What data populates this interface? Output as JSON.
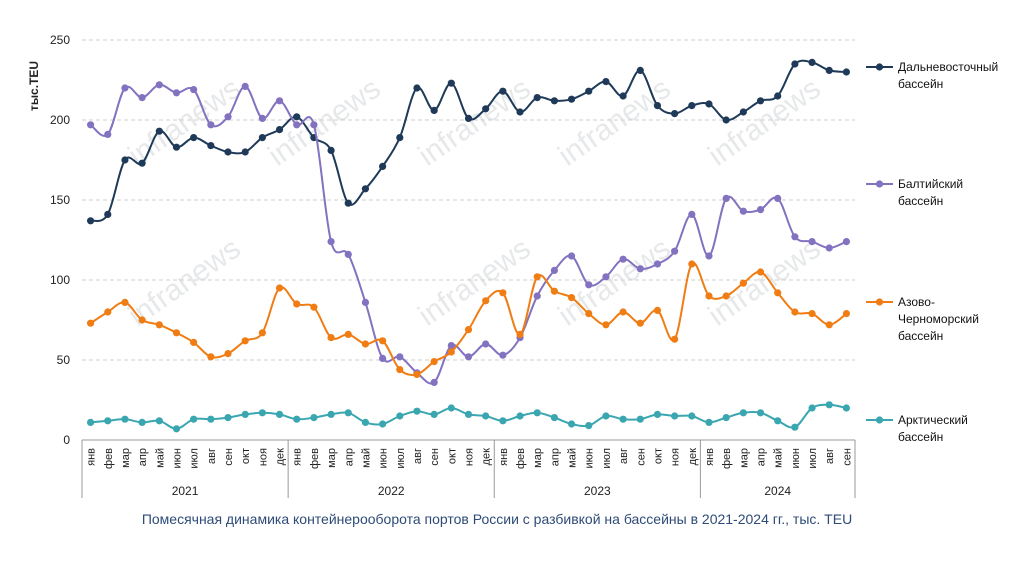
{
  "watermark": "infranews",
  "chart_data": {
    "type": "line",
    "title": "",
    "caption": "Помесячная динамика контейнерооборота портов России с разбивкой на бассейны в 2021-2024 гг., тыс. TEU",
    "ylabel": "тыс.TEU",
    "xlabel": "",
    "ylim": [
      0,
      250
    ],
    "yticks": [
      0,
      50,
      100,
      150,
      200,
      250
    ],
    "grid": true,
    "legend_position": "right",
    "years": [
      "2021",
      "2022",
      "2023",
      "2024"
    ],
    "months": [
      "янв",
      "фев",
      "мар",
      "апр",
      "май",
      "июн",
      "июл",
      "авг",
      "сен",
      "окт",
      "ноя",
      "дек",
      "янв",
      "фев",
      "мар",
      "апр",
      "май",
      "июн",
      "июл",
      "авг",
      "сен",
      "окт",
      "ноя",
      "дек",
      "янв",
      "фев",
      "мар",
      "апр",
      "май",
      "июн",
      "июл",
      "авг",
      "сен",
      "окт",
      "ноя",
      "дек",
      "янв",
      "фев",
      "мар",
      "апр",
      "май",
      "июн",
      "июл",
      "авг",
      "сен"
    ],
    "series": [
      {
        "name": "Дальневосточный бассейн",
        "label_lines": [
          "Дальневосточный",
          "бассейн"
        ],
        "color": "#1f3a58",
        "values": [
          137,
          141,
          175,
          173,
          193,
          183,
          189,
          184,
          180,
          180,
          189,
          194,
          202,
          189,
          181,
          148,
          157,
          171,
          189,
          220,
          206,
          223,
          201,
          207,
          218,
          205,
          214,
          212,
          213,
          218,
          224,
          215,
          231,
          209,
          204,
          209,
          210,
          200,
          205,
          212,
          215,
          235,
          236,
          231,
          230
        ]
      },
      {
        "name": "Балтийский бассейн",
        "label_lines": [
          "Балтийский",
          "бассейн"
        ],
        "color": "#8372c0",
        "values": [
          197,
          191,
          220,
          214,
          222,
          217,
          219,
          197,
          202,
          221,
          201,
          212,
          197,
          197,
          124,
          116,
          86,
          51,
          52,
          42,
          36,
          59,
          52,
          60,
          53,
          64,
          90,
          106,
          115,
          97,
          102,
          113,
          107,
          110,
          118,
          141,
          115,
          151,
          143,
          144,
          151,
          127,
          124,
          120,
          124
        ]
      },
      {
        "name": "Азово-Черноморский бассейн",
        "label_lines": [
          "Азово-",
          "Черноморский",
          "бассейн"
        ],
        "color": "#ef7d14",
        "values": [
          73,
          80,
          86,
          75,
          72,
          67,
          61,
          52,
          54,
          62,
          67,
          95,
          85,
          83,
          64,
          66,
          60,
          62,
          44,
          41,
          49,
          55,
          69,
          87,
          92,
          66,
          102,
          93,
          89,
          79,
          72,
          80,
          73,
          81,
          63,
          110,
          90,
          90,
          98,
          105,
          92,
          80,
          79,
          72,
          79
        ]
      },
      {
        "name": "Арктический бассейн",
        "label_lines": [
          "Арктический",
          "бассейн"
        ],
        "color": "#3aa6b0",
        "values": [
          11,
          12,
          13,
          11,
          12,
          7,
          13,
          13,
          14,
          16,
          17,
          16,
          13,
          14,
          16,
          17,
          11,
          10,
          15,
          18,
          16,
          20,
          16,
          15,
          12,
          15,
          17,
          14,
          10,
          9,
          15,
          13,
          13,
          16,
          15,
          15,
          11,
          14,
          17,
          17,
          12,
          8,
          20,
          22,
          20
        ]
      }
    ]
  }
}
